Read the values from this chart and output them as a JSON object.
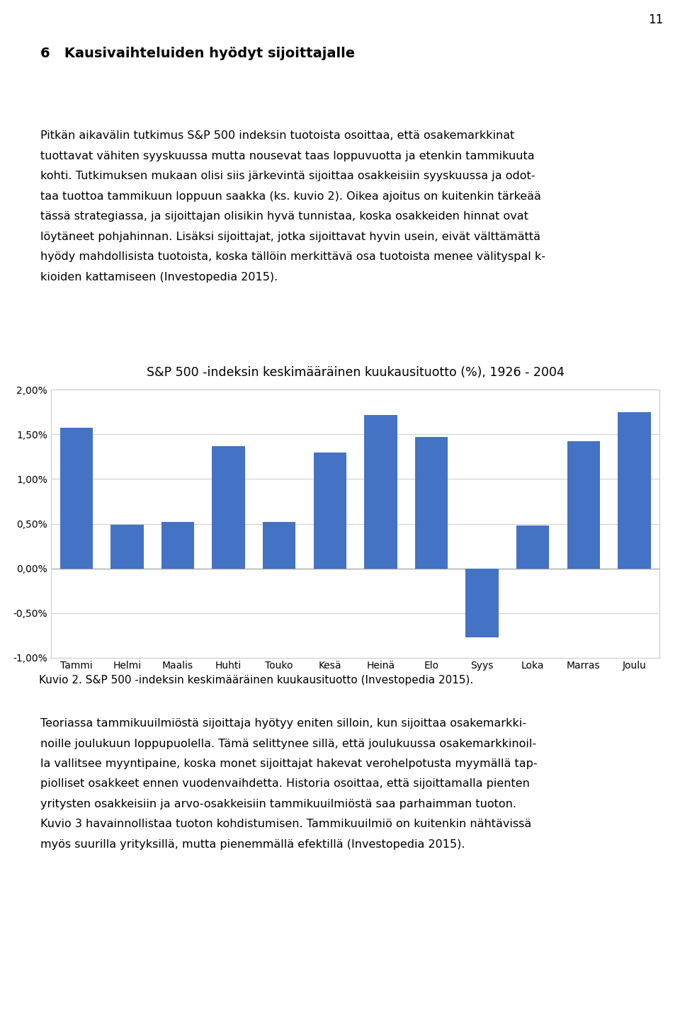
{
  "page_number": "11",
  "heading": "6   Kausivaihteluiden hyödyt sijoittajalle",
  "para1_lines": [
    "Pitkän aikavälin tutkimus S&P 500 indeksin tuotoista osoittaa, että osakemarkkinat",
    "tuottavat vähiten syyskuussa mutta nousevat taas loppuvuotta ja etenkin tammikuuta",
    "kohti. Tutkimuksen mukaan olisi siis järkevintä sijoittaa osakkeisiin syyskuussa ja odot-",
    "taa tuottoa tammikuun loppuun saakka (ks. kuvio 2). Oikea ajoitus on kuitenkin tärkeää",
    "tässä strategiassa, ja sijoittajan olisikin hyvä tunnistaa, koska osakkeiden hinnat ovat",
    "löytäneet pohjahinnan. Lisäksi sijoittajat, jotka sijoittavat hyvin usein, eivät välttämättä",
    "hyödy mahdollisista tuotoista, koska tällöin merkittävä osa tuotoista menee välityspal k-",
    "kioiden kattamiseen (Investopedia 2015)."
  ],
  "chart_title": "S&P 500 -indeksin keskimääräinen kuukausituotto (%), 1926 - 2004",
  "categories": [
    "Tammi",
    "Helmi",
    "Maalis",
    "Huhti",
    "Touko",
    "Kesä",
    "Heinä",
    "Elo",
    "Syys",
    "Loka",
    "Marras",
    "Joulu"
  ],
  "values": [
    1.57,
    0.49,
    0.52,
    1.37,
    0.52,
    1.3,
    1.72,
    1.47,
    -0.77,
    0.48,
    1.42,
    1.75
  ],
  "bar_color": "#4472C4",
  "ylim": [
    -1.0,
    2.0
  ],
  "yticks": [
    -1.0,
    -0.5,
    0.0,
    0.5,
    1.0,
    1.5,
    2.0
  ],
  "ytick_labels": [
    "-1,00%",
    "-0,50%",
    "0,00%",
    "0,50%",
    "1,00%",
    "1,50%",
    "2,00%"
  ],
  "caption": "Kuvio 2. S&P 500 -indeksin keskimääräinen kuukausituotto (Investopedia 2015).",
  "para2_lines": [
    "Teoriassa tammikuuilmiöstä sijoittaja hyötyy eniten silloin, kun sijoittaa osakemarkki-",
    "noille joulukuun loppupuolella. Tämä selittynee sillä, että joulukuussa osakemarkkinoil-",
    "la vallitsee myyntipaine, koska monet sijoittajat hakevat verohelpotusta myymällä tap-",
    "piolliset osakkeet ennen vuodenvaihdetta. Historia osoittaa, että sijoittamalla pienten",
    "yritysten osakkeisiin ja arvo-osakkeisiin tammikuuilmiöstä saa parhaimman tuoton.",
    "Kuvio 3 havainnollistaa tuoton kohdistumisen. Tammikuuilmiö on kuitenkin nähtävissä",
    "myös suurilla yrityksillä, mutta pienemmällä efektillä (Investopedia 2015)."
  ],
  "background_color": "#ffffff",
  "text_color": "#000000",
  "grid_color": "#d0d0d0",
  "font_size_body": 11.5,
  "font_size_heading": 14,
  "font_size_chart_title": 12.5,
  "font_size_axis": 10,
  "font_size_caption": 11
}
